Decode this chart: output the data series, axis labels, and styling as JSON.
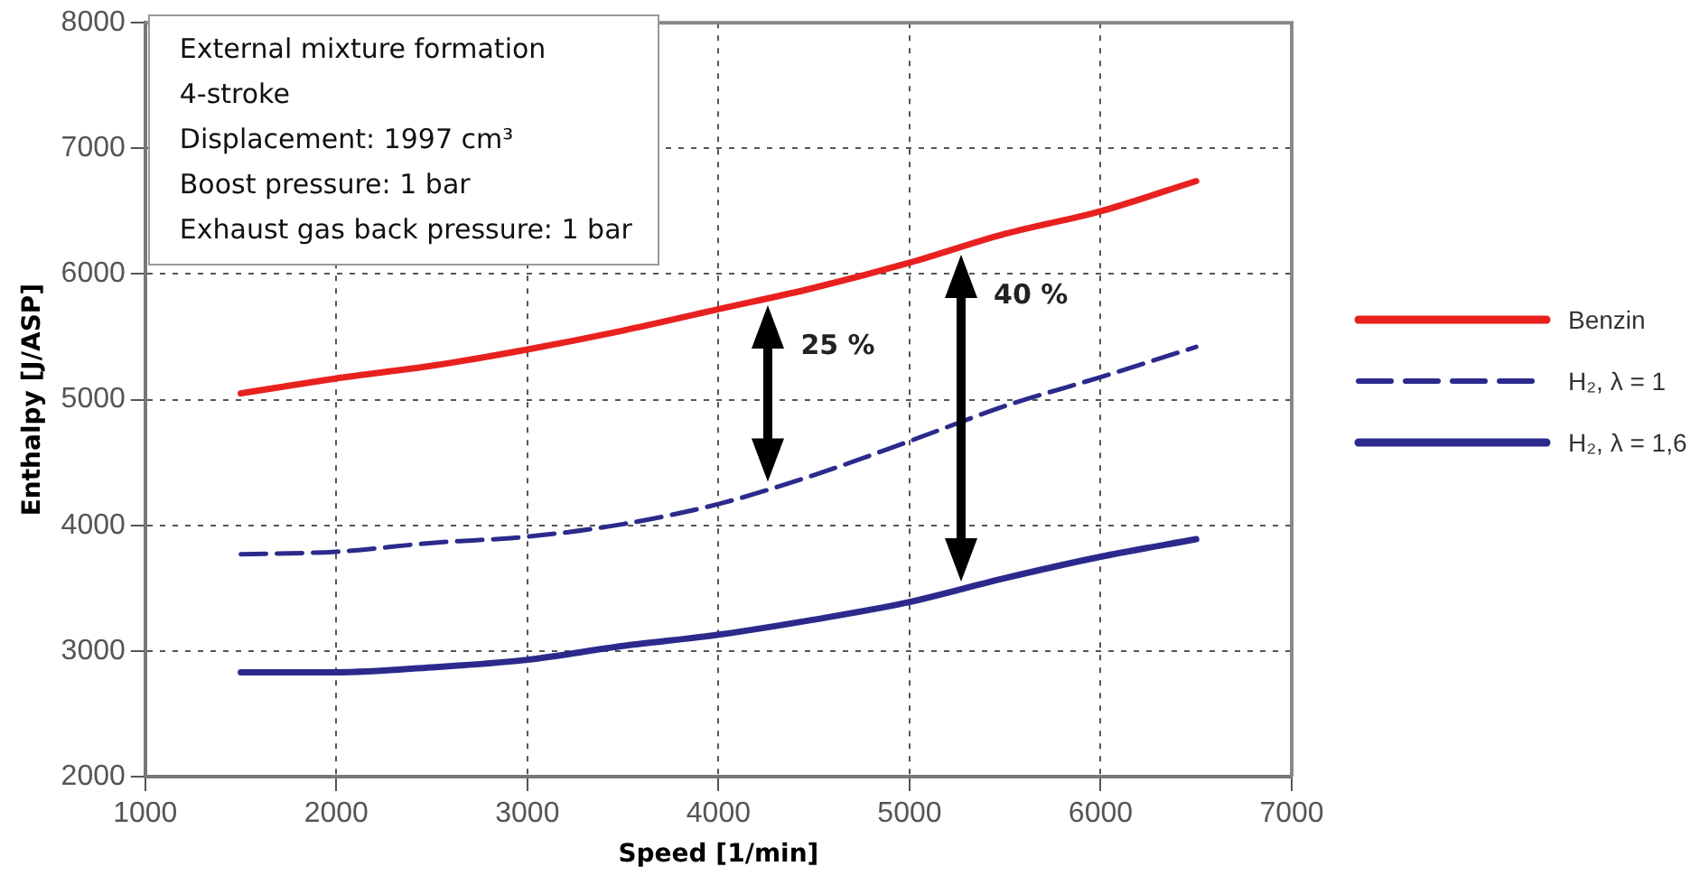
{
  "chart_data": {
    "type": "line",
    "xlabel": "Speed [1/min]",
    "ylabel": "Enthalpy [J/ASP]",
    "x": [
      1500,
      2000,
      2500,
      3000,
      3500,
      4000,
      4500,
      5000,
      5500,
      6000,
      6500
    ],
    "series": [
      {
        "name": "Benzin",
        "color": "#e8211f",
        "line_style": "solid",
        "values": [
          5050,
          5170,
          5270,
          5400,
          5550,
          5720,
          5890,
          6090,
          6320,
          6500,
          6740
        ]
      },
      {
        "name": "H₂, λ = 1",
        "color": "#2b2a8c",
        "line_style": "dashed",
        "values": [
          3770,
          3790,
          3860,
          3910,
          4010,
          4170,
          4400,
          4670,
          4950,
          5180,
          5420
        ]
      },
      {
        "name": "H₂, λ = 1,6",
        "color": "#2b2a8c",
        "line_style": "solid",
        "values": [
          2830,
          2830,
          2870,
          2930,
          3040,
          3130,
          3250,
          3390,
          3580,
          3750,
          3890
        ]
      }
    ],
    "xlim": [
      1000,
      7000
    ],
    "xticks": [
      1000,
      2000,
      3000,
      4000,
      5000,
      6000,
      7000
    ],
    "ylim": [
      2000,
      8000
    ],
    "yticks": [
      2000,
      3000,
      4000,
      5000,
      6000,
      7000,
      8000
    ],
    "grid": true,
    "legend": "right",
    "marker": "none",
    "annotations": [
      "External mixture formation",
      "4-stroke",
      "Displacement: 1997 cm³",
      "Boost pressure: 1 bar",
      "Exhaust gas back pressure: 1 bar",
      {
        "text": "25 %",
        "x": 4260,
        "y": 5810
      },
      {
        "text": "40 %",
        "x": 5270,
        "y": 6210
      }
    ]
  }
}
